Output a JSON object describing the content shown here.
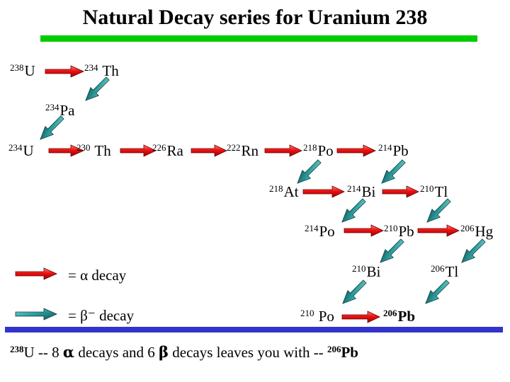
{
  "title": "Natural Decay series for Uranium 238",
  "nuclides": {
    "u238": {
      "mass": "238",
      "symbol": "U"
    },
    "th234": {
      "mass": "234",
      "symbol": "Th"
    },
    "pa234": {
      "mass": "234",
      "symbol": "Pa"
    },
    "u234": {
      "mass": "234",
      "symbol": "U"
    },
    "th230": {
      "mass": "230",
      "symbol": "Th"
    },
    "ra226": {
      "mass": "226",
      "symbol": "Ra"
    },
    "rn222": {
      "mass": "222",
      "symbol": "Rn"
    },
    "po218": {
      "mass": "218",
      "symbol": "Po"
    },
    "pb214": {
      "mass": "214",
      "symbol": "Pb"
    },
    "at218": {
      "mass": "218",
      "symbol": "At"
    },
    "bi214": {
      "mass": "214",
      "symbol": "Bi"
    },
    "tl210": {
      "mass": "210",
      "symbol": "Tl"
    },
    "po214": {
      "mass": "214",
      "symbol": "Po"
    },
    "pb210": {
      "mass": "210",
      "symbol": "Pb"
    },
    "hg206": {
      "mass": "206",
      "symbol": "Hg"
    },
    "bi210": {
      "mass": "210",
      "symbol": "Bi"
    },
    "tl206": {
      "mass": "206",
      "symbol": "Tl"
    },
    "po210": {
      "mass": "210",
      "symbol": "Po"
    },
    "pb206": {
      "mass": "206",
      "symbol": "Pb"
    }
  },
  "legend": {
    "alpha": "=  α decay",
    "beta": "= β⁻  decay",
    "alpha_color": "#ee1111",
    "beta_color": "#2a9a9a"
  },
  "summary": {
    "start_mass": "238",
    "start_text": "U --  8 ",
    "alpha_symbol": "α",
    "middle_text": " decays and 6 ",
    "beta_symbol": "β",
    "end_text": " decays leaves you with --  ",
    "end_mass": "206",
    "end_symbol": "Pb"
  }
}
